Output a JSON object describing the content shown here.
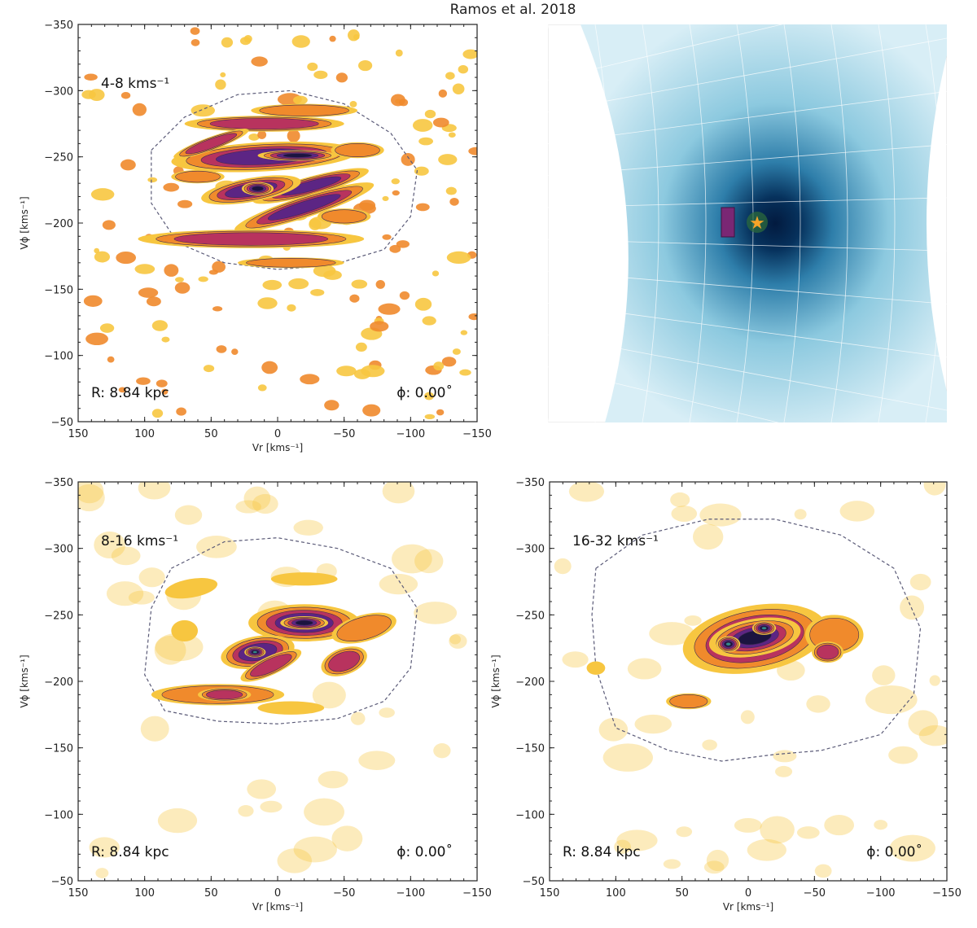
{
  "figure": {
    "title": "Ramos et al. 2018"
  },
  "colors": {
    "yellow": "#f7c640",
    "orange": "#f08a2c",
    "red": "#b8335e",
    "purple": "#5c2584",
    "dark": "#1b1440",
    "teal": "#2f8f8c",
    "sky_light": "#8cc9df",
    "sky_dark": "#06315c",
    "star": "#f6a428",
    "marker": "#7a2774"
  },
  "chart_data": [
    {
      "type": "heatmap",
      "panel": "top-left",
      "label": "4-8 kms⁻¹",
      "radius_text": "R: 8.84 kpc",
      "phi_text": "ϕ: 0.00˚",
      "xlabel": "Vr [kms⁻¹]",
      "ylabel": "Vϕ [kms⁻¹]",
      "xlim": [
        150,
        -150
      ],
      "ylim": [
        -50,
        -350
      ],
      "x_ticks": [
        "150",
        "100",
        "50",
        "0",
        "−50",
        "−100",
        "−150"
      ],
      "y_ticks": [
        "−350",
        "−300",
        "−250",
        "−200",
        "−150",
        "−100",
        "−50"
      ],
      "dashed_contour": [
        [
          95,
          -255
        ],
        [
          70,
          -280
        ],
        [
          30,
          -297
        ],
        [
          -10,
          -300
        ],
        [
          -50,
          -290
        ],
        [
          -85,
          -268
        ],
        [
          -105,
          -240
        ],
        [
          -100,
          -205
        ],
        [
          -80,
          -180
        ],
        [
          -40,
          -168
        ],
        [
          0,
          -165
        ],
        [
          40,
          -170
        ],
        [
          75,
          -185
        ],
        [
          95,
          -215
        ]
      ],
      "features": [
        {
          "x": 10,
          "y": -250,
          "rx": 70,
          "ry": 11,
          "level": 3,
          "angle": -3
        },
        {
          "x": -25,
          "y": -228,
          "rx": 45,
          "ry": 7,
          "level": 3,
          "angle": -15
        },
        {
          "x": -20,
          "y": -212,
          "rx": 55,
          "ry": 8,
          "level": 3,
          "angle": -18
        },
        {
          "x": 20,
          "y": -225,
          "rx": 38,
          "ry": 9,
          "level": 3,
          "angle": -10
        },
        {
          "x": 15,
          "y": -226,
          "rx": 12,
          "ry": 5,
          "level": 4,
          "angle": 0
        },
        {
          "x": -15,
          "y": -251,
          "rx": 30,
          "ry": 4,
          "level": 4,
          "angle": 0
        },
        {
          "x": 20,
          "y": -188,
          "rx": 85,
          "ry": 7,
          "level": 2,
          "angle": 0
        },
        {
          "x": 10,
          "y": -275,
          "rx": 60,
          "ry": 6,
          "level": 2,
          "angle": 0
        },
        {
          "x": -20,
          "y": -285,
          "rx": 40,
          "ry": 5,
          "level": 1,
          "angle": 0
        },
        {
          "x": 50,
          "y": -260,
          "rx": 30,
          "ry": 5,
          "level": 2,
          "angle": -20
        },
        {
          "x": 60,
          "y": -235,
          "rx": 20,
          "ry": 5,
          "level": 1,
          "angle": 0
        },
        {
          "x": -60,
          "y": -255,
          "rx": 20,
          "ry": 6,
          "level": 1,
          "angle": 0
        },
        {
          "x": -50,
          "y": -205,
          "rx": 20,
          "ry": 6,
          "level": 1,
          "angle": 0
        },
        {
          "x": -10,
          "y": -170,
          "rx": 40,
          "ry": 4,
          "level": 1,
          "angle": 0
        }
      ]
    },
    {
      "type": "scatter",
      "panel": "top-right",
      "description_colors": "sky-map density with sun marker",
      "features": []
    },
    {
      "type": "heatmap",
      "panel": "bottom-left",
      "label": "8-16 kms⁻¹",
      "radius_text": "R: 8.84 kpc",
      "phi_text": "ϕ: 0.00˚",
      "xlabel": "Vr [kms⁻¹]",
      "ylabel": "Vϕ [kms⁻¹]",
      "xlim": [
        150,
        -150
      ],
      "ylim": [
        -50,
        -350
      ],
      "x_ticks": [
        "150",
        "100",
        "50",
        "0",
        "−50",
        "−100",
        "−150"
      ],
      "y_ticks": [
        "−350",
        "−300",
        "−250",
        "−200",
        "−150",
        "−100",
        "−50"
      ],
      "dashed_contour": [
        [
          80,
          -285
        ],
        [
          40,
          -305
        ],
        [
          0,
          -308
        ],
        [
          -45,
          -300
        ],
        [
          -85,
          -285
        ],
        [
          -105,
          -255
        ],
        [
          -100,
          -210
        ],
        [
          -80,
          -185
        ],
        [
          -45,
          -172
        ],
        [
          0,
          -168
        ],
        [
          45,
          -170
        ],
        [
          85,
          -178
        ],
        [
          100,
          -205
        ],
        [
          95,
          -255
        ]
      ],
      "features": [
        {
          "x": -20,
          "y": -244,
          "rx": 42,
          "ry": 14,
          "level": 3,
          "angle": 0
        },
        {
          "x": -20,
          "y": -244,
          "rx": 18,
          "ry": 5,
          "level": 4,
          "angle": 0
        },
        {
          "x": 15,
          "y": -222,
          "rx": 28,
          "ry": 12,
          "level": 3,
          "angle": -10
        },
        {
          "x": 17,
          "y": -222,
          "rx": 8,
          "ry": 4,
          "level": 5,
          "angle": 0
        },
        {
          "x": 5,
          "y": -212,
          "rx": 25,
          "ry": 7,
          "level": 2,
          "angle": -25
        },
        {
          "x": -50,
          "y": -215,
          "rx": 18,
          "ry": 10,
          "level": 2,
          "angle": -20
        },
        {
          "x": -65,
          "y": -240,
          "rx": 25,
          "ry": 10,
          "level": 1,
          "angle": -15
        },
        {
          "x": 45,
          "y": -190,
          "rx": 50,
          "ry": 8,
          "level": 1,
          "angle": 0
        },
        {
          "x": 40,
          "y": -190,
          "rx": 20,
          "ry": 5,
          "level": 2,
          "angle": 0
        },
        {
          "x": -20,
          "y": -277,
          "rx": 25,
          "ry": 5,
          "level": 0,
          "angle": 0
        },
        {
          "x": 65,
          "y": -270,
          "rx": 20,
          "ry": 7,
          "level": 0,
          "angle": -10
        },
        {
          "x": 70,
          "y": -238,
          "rx": 10,
          "ry": 8,
          "level": 0,
          "angle": 0
        },
        {
          "x": -10,
          "y": -180,
          "rx": 25,
          "ry": 5,
          "level": 0,
          "angle": 0
        }
      ]
    },
    {
      "type": "heatmap",
      "panel": "bottom-right",
      "label": "16-32 kms⁻¹",
      "radius_text": "R: 8.84 kpc",
      "phi_text": "ϕ: 0.00˚",
      "xlabel": "Vr [kms⁻¹]",
      "ylabel": "Vϕ [kms⁻¹]",
      "xlim": [
        150,
        -150
      ],
      "ylim": [
        -50,
        -350
      ],
      "x_ticks": [
        "150",
        "100",
        "50",
        "0",
        "−50",
        "−100",
        "−150"
      ],
      "y_ticks": [
        "−350",
        "−300",
        "−250",
        "−200",
        "−150",
        "−100",
        "−50"
      ],
      "dashed_contour": [
        [
          115,
          -285
        ],
        [
          80,
          -310
        ],
        [
          30,
          -322
        ],
        [
          -20,
          -322
        ],
        [
          -70,
          -310
        ],
        [
          -110,
          -285
        ],
        [
          -130,
          -240
        ],
        [
          -125,
          -190
        ],
        [
          -100,
          -160
        ],
        [
          -55,
          -148
        ],
        [
          -20,
          -145
        ],
        [
          20,
          -140
        ],
        [
          60,
          -148
        ],
        [
          100,
          -165
        ],
        [
          115,
          -210
        ],
        [
          118,
          -250
        ]
      ],
      "features": [
        {
          "x": -5,
          "y": -232,
          "rx": 55,
          "ry": 25,
          "level": 3,
          "angle": -10
        },
        {
          "x": -65,
          "y": -235,
          "rx": 22,
          "ry": 15,
          "level": 1,
          "angle": 0
        },
        {
          "x": -60,
          "y": -222,
          "rx": 12,
          "ry": 8,
          "level": 2,
          "angle": 0
        },
        {
          "x": -5,
          "y": -233,
          "rx": 35,
          "ry": 14,
          "level": 4,
          "angle": -10
        },
        {
          "x": 15,
          "y": -228,
          "rx": 9,
          "ry": 6,
          "level": 5,
          "angle": 0
        },
        {
          "x": -12,
          "y": -240,
          "rx": 9,
          "ry": 5,
          "level": 5,
          "angle": 0
        },
        {
          "x": 45,
          "y": -185,
          "rx": 17,
          "ry": 6,
          "level": 1,
          "angle": 0
        },
        {
          "x": 115,
          "y": -210,
          "rx": 7,
          "ry": 5,
          "level": 0,
          "angle": 0
        }
      ]
    }
  ]
}
